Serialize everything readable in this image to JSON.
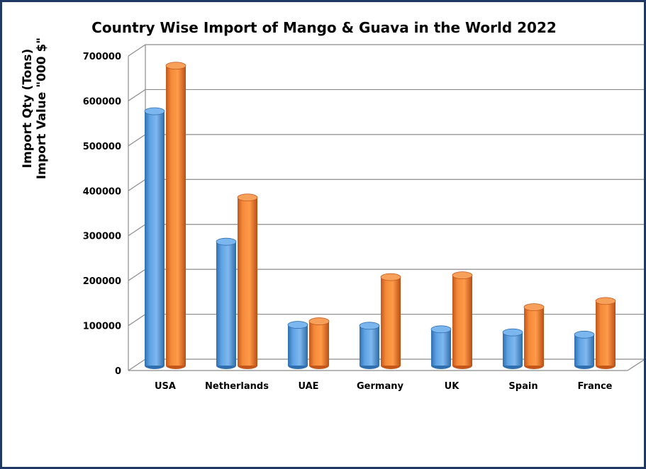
{
  "chart_data": {
    "type": "bar",
    "title": "Country Wise Import of Mango & Guava  in the World 2022",
    "ylabel_line1": "Import Qty (Tons)",
    "ylabel_line2": "Import Value \"000 $\"",
    "categories": [
      "USA",
      "Netherlands",
      "UAE",
      "Germany",
      "UK",
      "Spain",
      "France"
    ],
    "series": [
      {
        "values": [
          575000,
          280000,
          92000,
          90000,
          82000,
          75000,
          70000
        ],
        "color": "#5b9bd5"
      },
      {
        "values": [
          678000,
          380000,
          100000,
          200000,
          204000,
          132000,
          146000
        ],
        "color": "#ed7d31"
      }
    ],
    "ylim": [
      0,
      700000
    ],
    "yticks": [
      "0",
      "100000",
      "200000",
      "300000",
      "400000",
      "500000",
      "600000",
      "700000"
    ],
    "grid": true,
    "legend": "none",
    "style": "3d-cylinder"
  }
}
